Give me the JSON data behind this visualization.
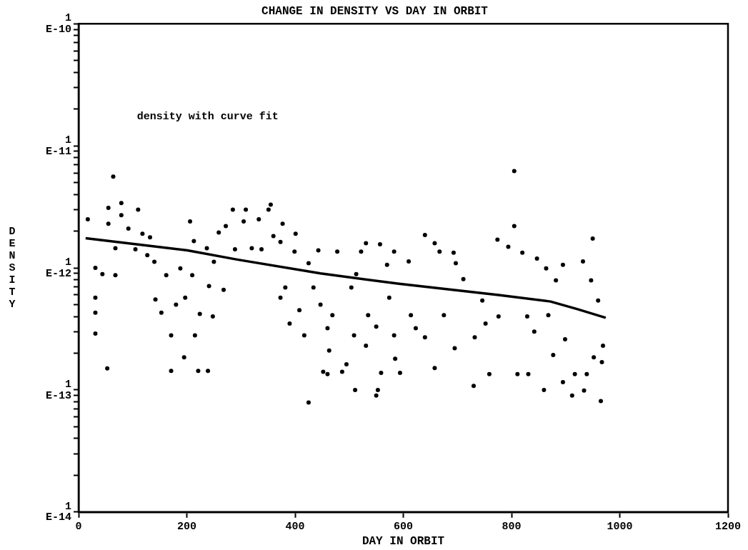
{
  "chart_data": {
    "type": "scatter",
    "title": "CHANGE IN DENSITY VS DAY IN ORBIT",
    "xlabel": "DAY IN ORBIT",
    "ylabel": "DENSITY",
    "annotations": [
      "density with curve fit"
    ],
    "log": "y",
    "grid": false,
    "legend": false,
    "xlim": [
      0,
      1200
    ],
    "xticks": [
      0,
      200,
      400,
      600,
      800,
      1000,
      1200
    ],
    "ylim": [
      1e-14,
      1e-10
    ],
    "yticks": [
      {
        "value": 1e-14,
        "label": "1E-14"
      },
      {
        "value": 2e-14,
        "label": null
      },
      {
        "value": 3e-14,
        "label": null
      },
      {
        "value": 4e-14,
        "label": null
      },
      {
        "value": 5e-14,
        "label": null
      },
      {
        "value": 6e-14,
        "label": null
      },
      {
        "value": 7e-14,
        "label": null
      },
      {
        "value": 8e-14,
        "label": null
      },
      {
        "value": 9e-14,
        "label": null
      },
      {
        "value": 1e-13,
        "label": "1E-13"
      },
      {
        "value": 2e-13,
        "label": null
      },
      {
        "value": 3e-13,
        "label": null
      },
      {
        "value": 4e-13,
        "label": null
      },
      {
        "value": 5e-13,
        "label": null
      },
      {
        "value": 6e-13,
        "label": null
      },
      {
        "value": 7e-13,
        "label": null
      },
      {
        "value": 8e-13,
        "label": null
      },
      {
        "value": 9e-13,
        "label": null
      },
      {
        "value": 1e-12,
        "label": "1E-12"
      },
      {
        "value": 2e-12,
        "label": null
      },
      {
        "value": 3e-12,
        "label": null
      },
      {
        "value": 4e-12,
        "label": null
      },
      {
        "value": 5e-12,
        "label": null
      },
      {
        "value": 6e-12,
        "label": null
      },
      {
        "value": 7e-12,
        "label": null
      },
      {
        "value": 8e-12,
        "label": null
      },
      {
        "value": 9e-12,
        "label": null
      },
      {
        "value": 1e-11,
        "label": "1E-11"
      },
      {
        "value": 2e-11,
        "label": null
      },
      {
        "value": 3e-11,
        "label": null
      },
      {
        "value": 4e-11,
        "label": null
      },
      {
        "value": 5e-11,
        "label": null
      },
      {
        "value": 6e-11,
        "label": null
      },
      {
        "value": 7e-11,
        "label": null
      },
      {
        "value": 8e-11,
        "label": null
      },
      {
        "value": 9e-11,
        "label": null
      },
      {
        "value": 1e-10,
        "label": "1E-10"
      }
    ],
    "series": [
      {
        "type": "scatter",
        "color": "#000000",
        "marker": "circle",
        "x": [
          17,
          31,
          31,
          31,
          31,
          44,
          55,
          55,
          64,
          68,
          68,
          79,
          79,
          92,
          105,
          110,
          118,
          127,
          132,
          140,
          142,
          153,
          162,
          171,
          171,
          180,
          188,
          195,
          197,
          206,
          210,
          215,
          213,
          221,
          224,
          237,
          239,
          241,
          248,
          250,
          268,
          259,
          272,
          285,
          289,
          309,
          305,
          320,
          333,
          338,
          351,
          355,
          360,
          373,
          377,
          373,
          382,
          390,
          399,
          401,
          408,
          417,
          425,
          425,
          434,
          443,
          447,
          452,
          460,
          460,
          463,
          469,
          478,
          487,
          495,
          504,
          509,
          511,
          513,
          522,
          531,
          531,
          535,
          550,
          553,
          550,
          557,
          559,
          570,
          574,
          583,
          585,
          594,
          583,
          610,
          614,
          623,
          640,
          640,
          658,
          658,
          667,
          675,
          693,
          695,
          697,
          711,
          730,
          732,
          746,
          752,
          759,
          774,
          776,
          794,
          805,
          805,
          811,
          820,
          829,
          831,
          842,
          847,
          860,
          864,
          868,
          877,
          882,
          895,
          895,
          899,
          912,
          917,
          932,
          934,
          939,
          950,
          952,
          960,
          965,
          967,
          969,
          947,
          53
        ],
        "values": [
          2.5e-12,
          1e-12,
          5.7e-13,
          4.3e-13,
          2.9e-13,
          8.9e-13,
          3.1e-12,
          2.3e-12,
          5.6e-12,
          1.45e-12,
          8.7e-13,
          3.4e-12,
          2.7e-12,
          2.1e-12,
          1.42e-12,
          3e-12,
          1.9e-12,
          1.27e-12,
          1.78e-12,
          1.12e-12,
          5.5e-13,
          4.3e-13,
          8.7e-13,
          2.8e-13,
          1.43e-13,
          5e-13,
          9.9e-13,
          1.85e-13,
          5.7e-13,
          2.4e-12,
          8.7e-13,
          2.8e-13,
          1.66e-12,
          1.43e-13,
          4.2e-13,
          1.45e-12,
          1.43e-13,
          7.1e-13,
          4e-13,
          1.12e-12,
          6.6e-13,
          1.95e-12,
          2.2e-12,
          3e-12,
          1.42e-12,
          3e-12,
          2.4e-12,
          1.45e-12,
          2.5e-12,
          1.42e-12,
          3e-12,
          3.3e-12,
          1.82e-12,
          1.63e-12,
          2.3e-12,
          5.7e-13,
          6.9e-13,
          3.5e-13,
          1.36e-12,
          1.9e-12,
          4.5e-13,
          2.8e-13,
          7.9e-14,
          1.09e-12,
          6.9e-13,
          1.39e-12,
          5e-13,
          1.41e-13,
          3.2e-13,
          1.35e-13,
          2.1e-13,
          4.1e-13,
          1.36e-12,
          1.41e-13,
          1.62e-13,
          6.9e-13,
          2.8e-13,
          1e-13,
          8.9e-13,
          1.36e-12,
          2.3e-13,
          1.59e-12,
          4.1e-13,
          3.3e-13,
          1e-13,
          9e-14,
          1.56e-12,
          1.38e-13,
          1.06e-12,
          5.7e-13,
          2.8e-13,
          1.8e-13,
          1.38e-13,
          1.36e-12,
          1.13e-12,
          4.1e-13,
          3.2e-13,
          1.86e-12,
          2.7e-13,
          1.59e-12,
          1.51e-13,
          1.36e-12,
          4.1e-13,
          1.33e-12,
          2.2e-13,
          1.09e-12,
          8.1e-13,
          1.08e-13,
          2.7e-13,
          5.4e-13,
          3.5e-13,
          1.35e-13,
          1.7e-12,
          4e-13,
          1.49e-12,
          6.2e-12,
          2.2e-12,
          1.35e-13,
          1.33e-12,
          4e-13,
          1.35e-13,
          3e-13,
          1.19e-12,
          1e-13,
          9.9e-13,
          4.1e-13,
          1.93e-13,
          7.9e-13,
          1.06e-12,
          1.16e-13,
          2.6e-13,
          9e-14,
          1.35e-13,
          1.13e-12,
          9.9e-14,
          1.35e-13,
          1.74e-12,
          1.85e-13,
          5.4e-13,
          8.1e-14,
          1.69e-13,
          2.3e-13,
          7.9e-13,
          1.5e-13
        ]
      },
      {
        "type": "line",
        "color": "#000000",
        "marker": "none",
        "line_style": "solid",
        "x": [
          13,
          201,
          293,
          447,
          592,
          776,
          872,
          921,
          974
        ],
        "values": [
          1.75e-12,
          1.39e-12,
          1.17e-12,
          9e-13,
          7.4e-13,
          6e-13,
          5.3e-13,
          4.6e-13,
          3.9e-13
        ]
      }
    ]
  }
}
